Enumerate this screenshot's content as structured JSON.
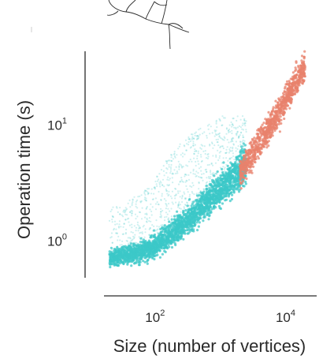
{
  "chart_data": {
    "type": "scatter",
    "title": "",
    "xlabel": "Size (number of vertices)",
    "ylabel": "Operation time (s)",
    "xscale": "log",
    "yscale": "log",
    "xlim": [
      10,
      30000
    ],
    "ylim": [
      0.5,
      40
    ],
    "x_ticks": [
      {
        "value": 100,
        "base": "10",
        "exp": "2"
      },
      {
        "value": 10000,
        "base": "10",
        "exp": "4"
      }
    ],
    "y_ticks": [
      {
        "value": 1,
        "base": "10",
        "exp": "0"
      },
      {
        "value": 10,
        "base": "10",
        "exp": "1"
      }
    ],
    "grid": false,
    "legend": "none",
    "series": [
      {
        "color": "#3cc8c8",
        "trend": [
          {
            "x": 20,
            "y": 0.72
          },
          {
            "x": 50,
            "y": 0.78
          },
          {
            "x": 100,
            "y": 0.9
          },
          {
            "x": 200,
            "y": 1.2
          },
          {
            "x": 400,
            "y": 1.7
          },
          {
            "x": 800,
            "y": 2.5
          },
          {
            "x": 1500,
            "y": 3.5
          },
          {
            "x": 2500,
            "y": 4.5
          }
        ],
        "spread": [
          {
            "x": 30,
            "y": 2.0
          },
          {
            "x": 80,
            "y": 3.0
          },
          {
            "x": 150,
            "y": 5.0
          },
          {
            "x": 300,
            "y": 8.0
          },
          {
            "x": 1000,
            "y": 12.0
          }
        ]
      },
      {
        "color": "#e8826c",
        "trend": [
          {
            "x": 2000,
            "y": 4.0
          },
          {
            "x": 3000,
            "y": 5.5
          },
          {
            "x": 5000,
            "y": 8.5
          },
          {
            "x": 8000,
            "y": 13.0
          },
          {
            "x": 13000,
            "y": 22.0
          },
          {
            "x": 20000,
            "y": 32.0
          }
        ]
      }
    ]
  },
  "colors": {
    "cyan": "#3cc8c8",
    "salmon": "#e8826c",
    "axis": "#2a2a2a"
  }
}
